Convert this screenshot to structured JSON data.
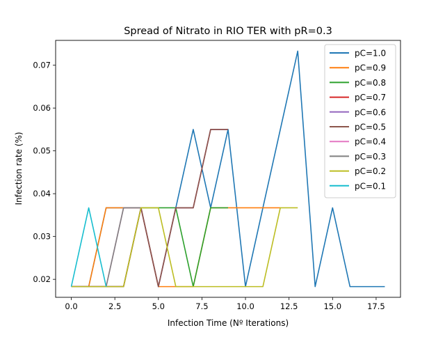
{
  "chart_data": {
    "type": "line",
    "title": "Spread of Nitrato in RIO TER with pR=0.3",
    "xlabel": "Infection Time (Nº Iterations)",
    "ylabel": "Infection rate (%)",
    "xlim": [
      -0.9,
      18.9
    ],
    "ylim": [
      0.0158,
      0.0758
    ],
    "xticks": [
      0,
      2.5,
      5,
      7.5,
      10,
      12.5,
      15,
      17.5
    ],
    "xtick_labels": [
      "0.0",
      "2.5",
      "5.0",
      "7.5",
      "10.0",
      "12.5",
      "15.0",
      "17.5"
    ],
    "yticks": [
      0.02,
      0.03,
      0.04,
      0.05,
      0.06,
      0.07
    ],
    "ytick_labels": [
      "0.02",
      "0.03",
      "0.04",
      "0.05",
      "0.06",
      "0.07"
    ],
    "grid": false,
    "legend_position": "upper right",
    "series": [
      {
        "name": "pC=1.0",
        "color": "#1f77b4",
        "x": [
          0,
          1,
          2,
          3,
          4,
          5,
          6,
          7,
          8,
          9,
          10,
          11,
          12,
          13,
          14,
          15,
          16,
          17,
          18
        ],
        "values": [
          0.0183,
          0.0183,
          0.0367,
          0.0367,
          0.0367,
          0.0183,
          0.0367,
          0.055,
          0.0367,
          0.055,
          0.0183,
          0.0367,
          0.055,
          0.0733,
          0.0183,
          0.0367,
          0.0183,
          0.0183,
          0.0183
        ]
      },
      {
        "name": "pC=0.9",
        "color": "#ff7f0e",
        "x": [
          0,
          1,
          2,
          3,
          4,
          5,
          6,
          7,
          8,
          9,
          10,
          11,
          12
        ],
        "values": [
          0.0183,
          0.0183,
          0.0367,
          0.0367,
          0.0367,
          0.0183,
          0.0183,
          0.0183,
          0.0367,
          0.0367,
          0.0367,
          0.0367,
          0.0367
        ]
      },
      {
        "name": "pC=0.8",
        "color": "#2ca02c",
        "x": [
          0,
          1,
          2,
          3,
          4,
          5,
          6,
          7,
          8,
          9
        ],
        "values": [
          0.0183,
          0.0183,
          0.0183,
          0.0183,
          0.0367,
          0.0367,
          0.0367,
          0.0183,
          0.0367,
          0.0367
        ]
      },
      {
        "name": "pC=0.7",
        "color": "#d62728",
        "x": [
          0,
          1,
          2,
          3,
          4,
          5,
          6,
          7,
          8,
          9
        ],
        "values": [
          0.0183,
          0.0183,
          0.0183,
          0.0183,
          0.0367,
          0.0183,
          0.0367,
          0.0367,
          0.055,
          0.055
        ]
      },
      {
        "name": "pC=0.6",
        "color": "#9467bd",
        "x": [
          0,
          1,
          2,
          3,
          4,
          5,
          6,
          7,
          8,
          9
        ],
        "values": [
          0.0183,
          0.0183,
          0.0183,
          0.0183,
          0.0367,
          0.0183,
          0.0367,
          0.0367,
          0.055,
          0.055
        ]
      },
      {
        "name": "pC=0.5",
        "color": "#8c564b",
        "x": [
          0,
          1,
          2,
          3,
          4,
          5,
          6,
          7,
          8,
          9
        ],
        "values": [
          0.0183,
          0.0183,
          0.0183,
          0.0183,
          0.0367,
          0.0183,
          0.0367,
          0.0367,
          0.055,
          0.055
        ]
      },
      {
        "name": "pC=0.4",
        "color": "#e377c2",
        "x": [
          0,
          1,
          2,
          3,
          4
        ],
        "values": [
          0.0183,
          0.0183,
          0.0183,
          0.0367,
          0.0367
        ]
      },
      {
        "name": "pC=0.3",
        "color": "#7f7f7f",
        "x": [
          0,
          1,
          2,
          3,
          4
        ],
        "values": [
          0.0183,
          0.0183,
          0.0183,
          0.0367,
          0.0367
        ]
      },
      {
        "name": "pC=0.2",
        "color": "#bcbd22",
        "x": [
          0,
          1,
          2,
          3,
          4,
          5,
          6,
          7,
          8,
          9,
          10,
          11,
          12,
          13
        ],
        "values": [
          0.0183,
          0.0183,
          0.0183,
          0.0183,
          0.0367,
          0.0367,
          0.0183,
          0.0183,
          0.0183,
          0.0183,
          0.0183,
          0.0183,
          0.0367,
          0.0367
        ]
      },
      {
        "name": "pC=0.1",
        "color": "#17becf",
        "x": [
          0,
          1,
          2
        ],
        "values": [
          0.0183,
          0.0367,
          0.0183
        ]
      }
    ]
  }
}
